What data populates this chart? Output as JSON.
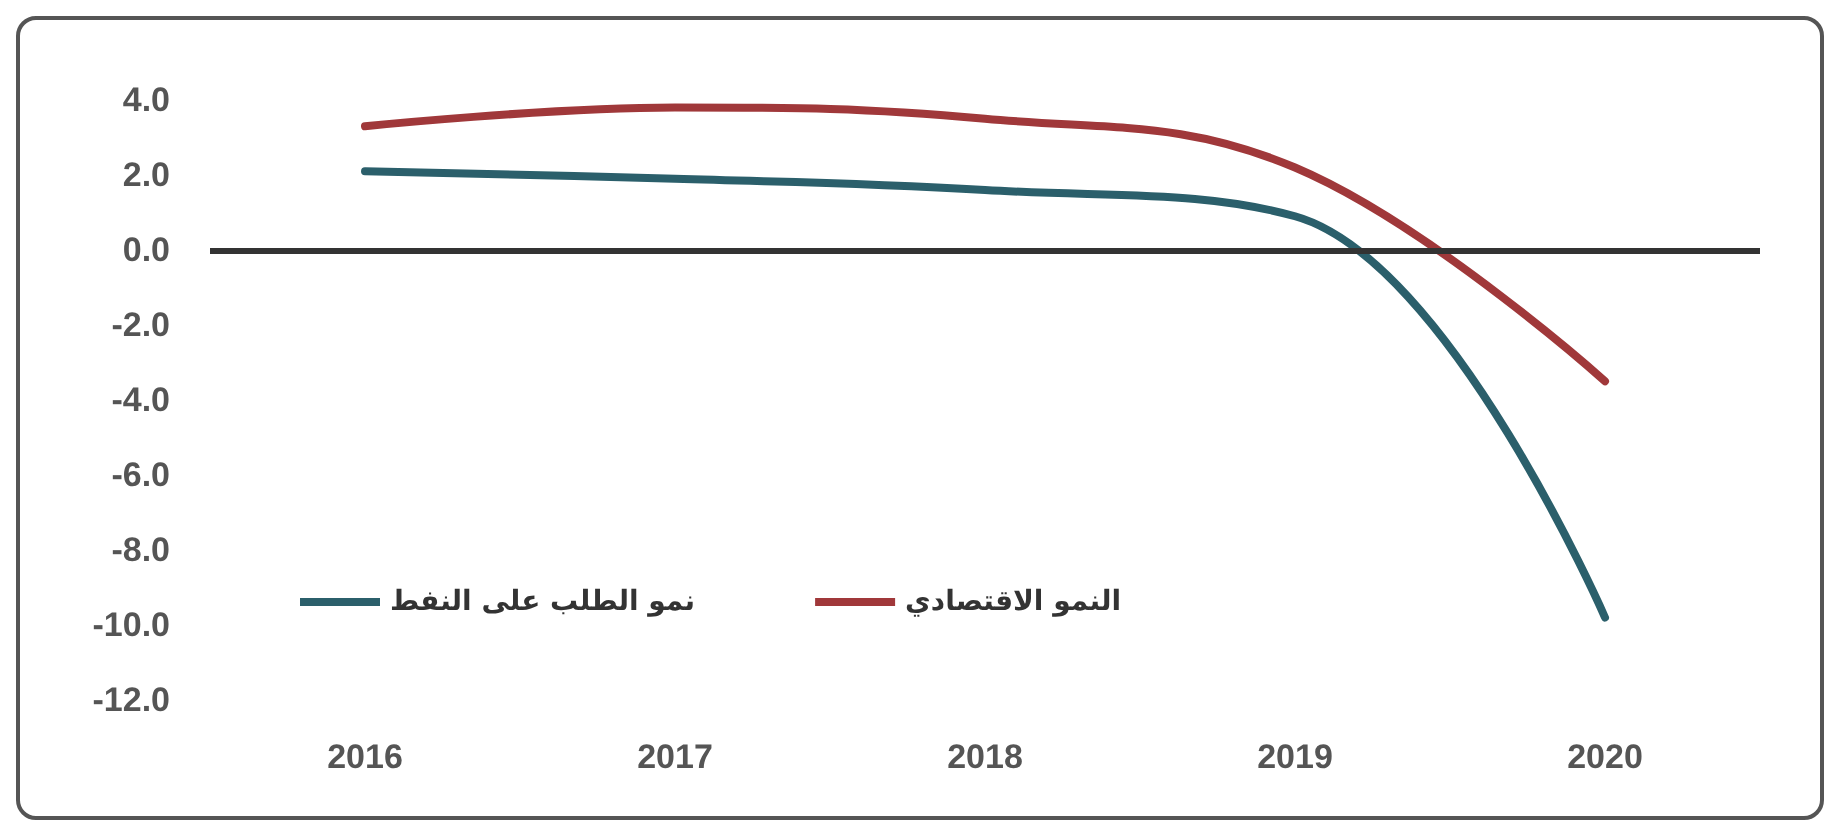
{
  "chart_data": {
    "type": "line",
    "categories": [
      "2016",
      "2017",
      "2018",
      "2019",
      "2020"
    ],
    "series": [
      {
        "name": "نمو الطلب على النفط",
        "color": "#2b5f6b",
        "values": [
          2.1,
          1.9,
          1.6,
          0.9,
          -9.8
        ]
      },
      {
        "name": "النمو الاقتصادي",
        "color": "#a0383a",
        "values": [
          3.3,
          3.8,
          3.5,
          2.2,
          -3.5
        ]
      }
    ],
    "ylim": [
      -12,
      4
    ],
    "yticks": [
      {
        "value": -12,
        "label": "-12.0"
      },
      {
        "value": -10,
        "label": "-10.0"
      },
      {
        "value": -8,
        "label": "-8.0"
      },
      {
        "value": -6,
        "label": "-6.0"
      },
      {
        "value": -4,
        "label": "-4.0"
      },
      {
        "value": -2,
        "label": "-2.0"
      },
      {
        "value": 0,
        "label": "0.0"
      },
      {
        "value": 2,
        "label": "2.0"
      },
      {
        "value": 4,
        "label": "4.0"
      }
    ],
    "ref_lines": [
      {
        "axis": "y",
        "value": 0,
        "color": "#333333"
      }
    ],
    "grid": false,
    "legend": "bottom left",
    "marker": "none",
    "line_style": "solid"
  }
}
